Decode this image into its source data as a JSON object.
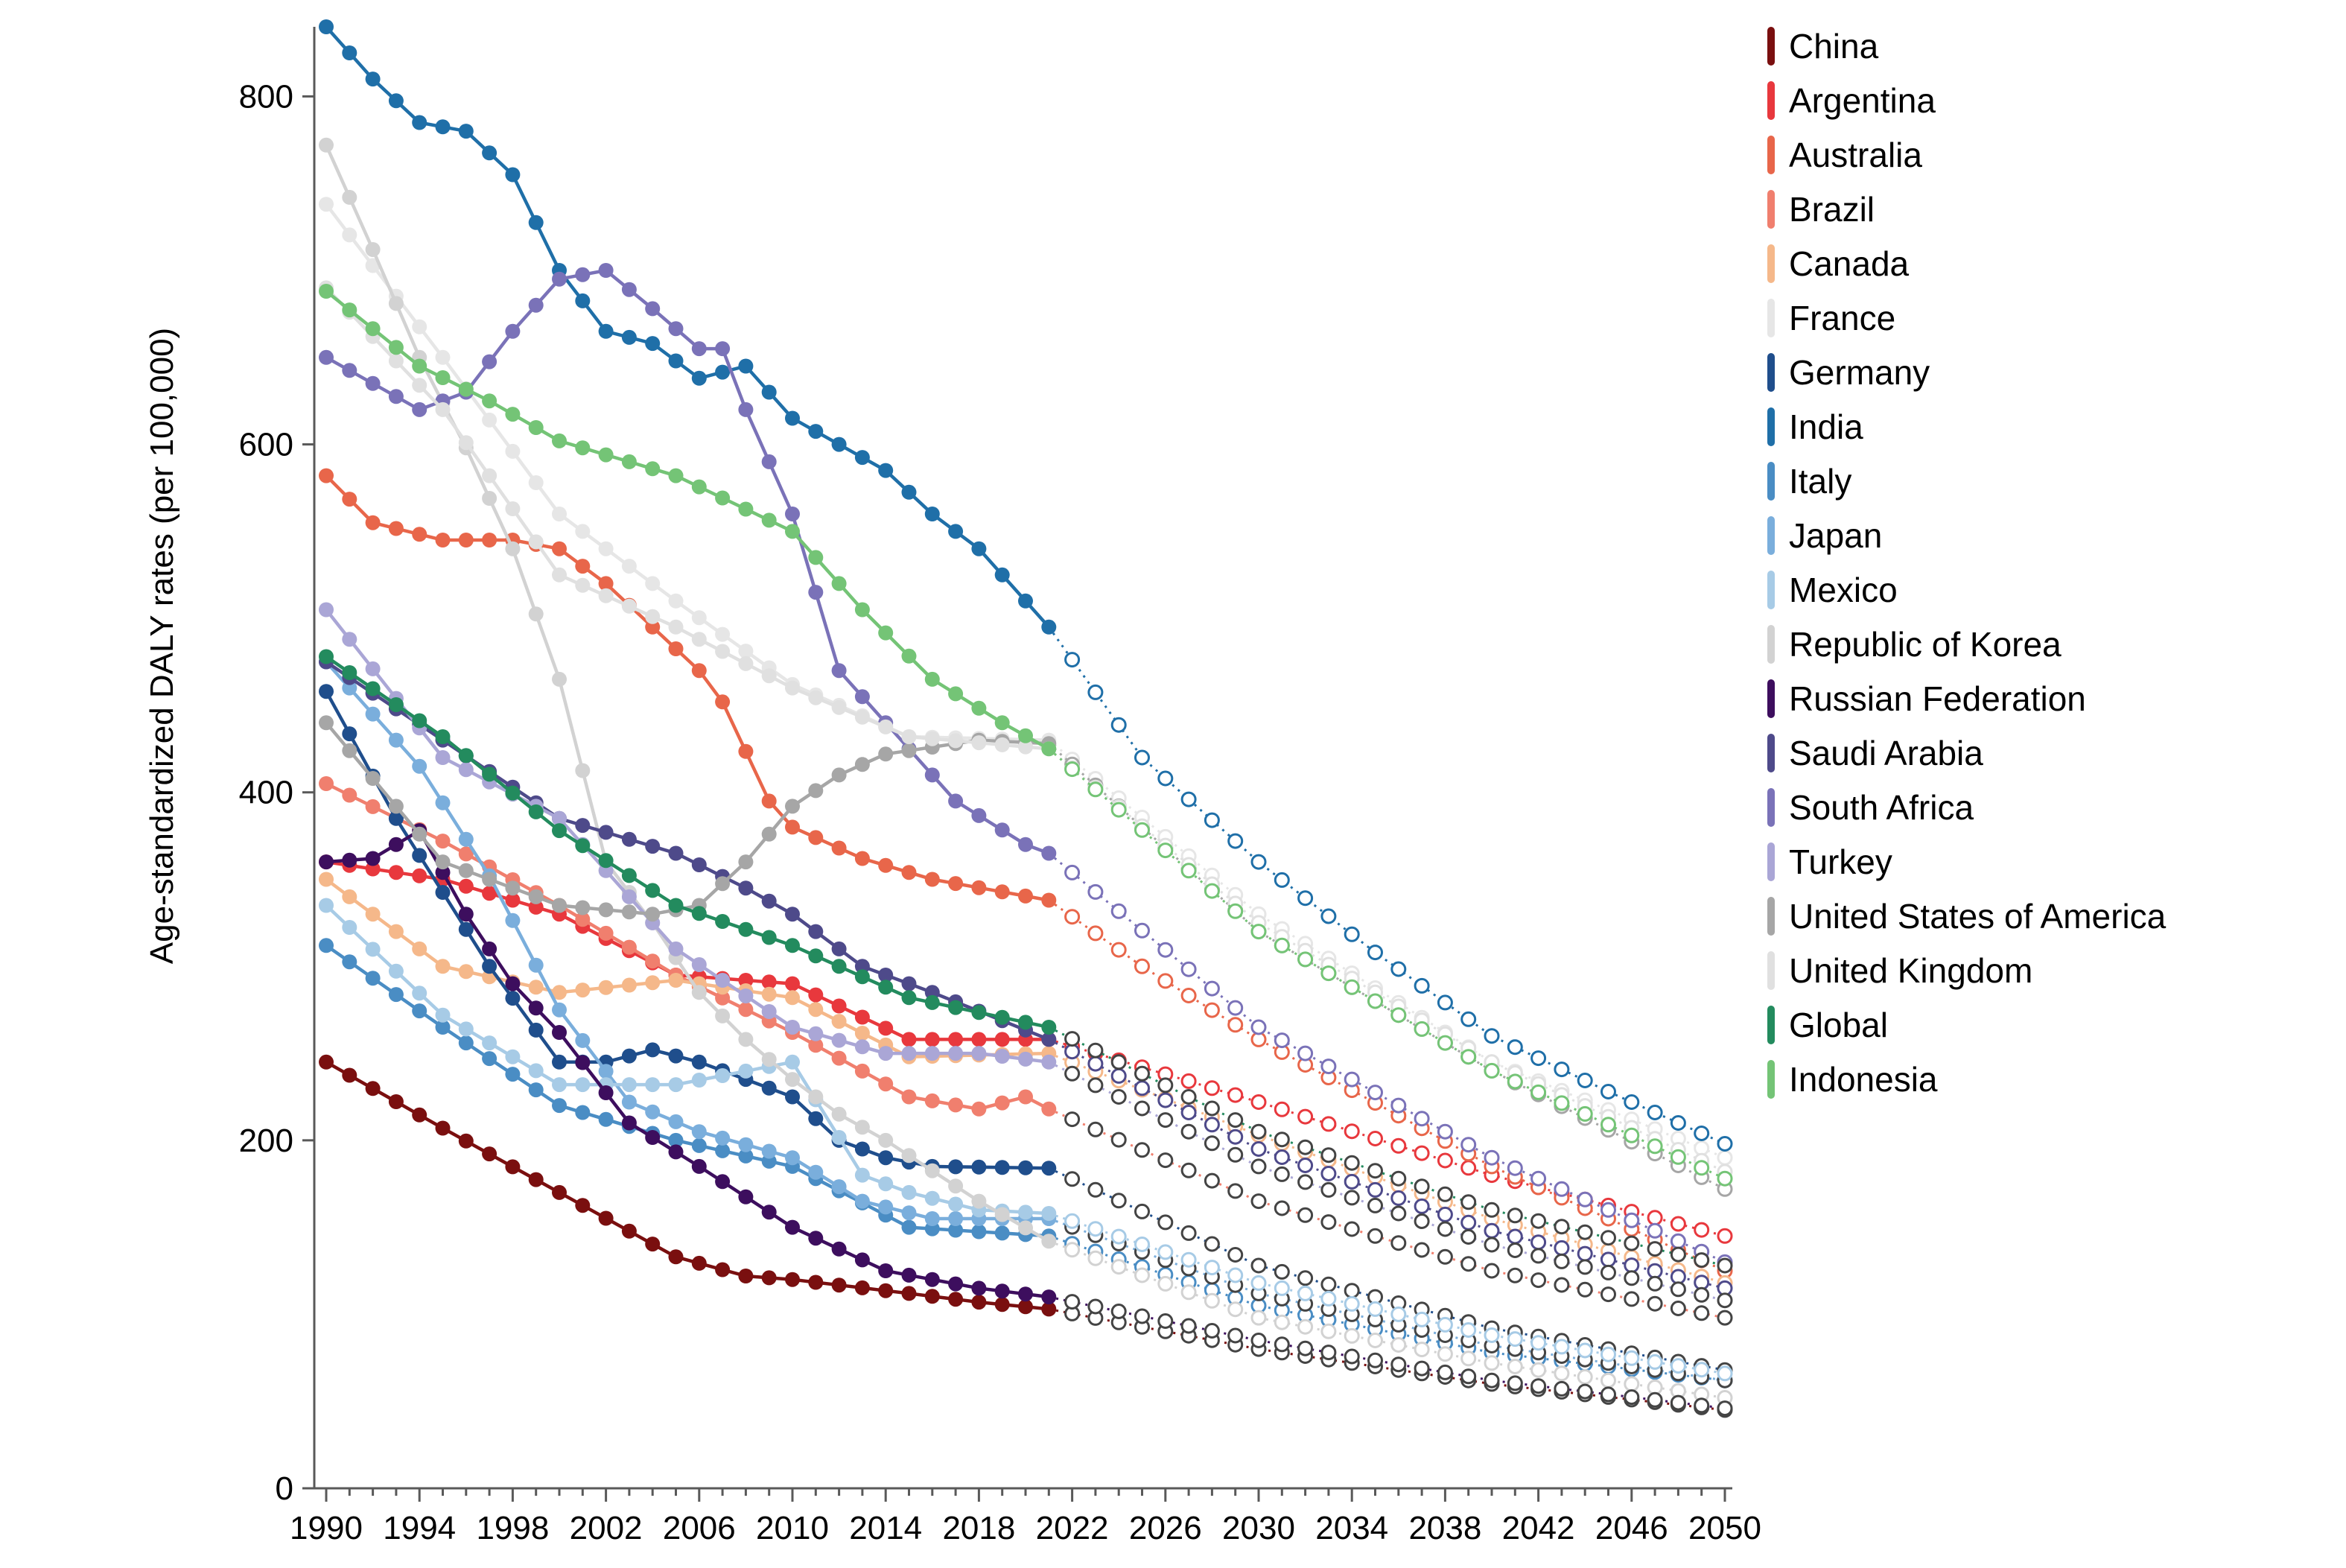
{
  "chart_data": {
    "type": "line",
    "title": "",
    "xlabel": "",
    "ylabel": "Age-standardized DALY rates (per 100,000)",
    "xlim": [
      1990,
      2050
    ],
    "ylim": [
      0,
      840
    ],
    "observed_end": 2021,
    "x_ticks": [
      1990,
      1994,
      1998,
      2002,
      2006,
      2010,
      2014,
      2018,
      2022,
      2026,
      2030,
      2034,
      2038,
      2042,
      2046,
      2050
    ],
    "y_ticks": [
      0,
      200,
      400,
      600,
      800
    ],
    "legend_position": "right",
    "series": [
      {
        "name": "China",
        "color": "#7a0f0f",
        "points": [
          [
            1990,
            245
          ],
          [
            1995,
            207
          ],
          [
            2000,
            170
          ],
          [
            2005,
            133
          ],
          [
            2008,
            122
          ],
          [
            2010,
            120
          ],
          [
            2015,
            112
          ],
          [
            2018,
            107
          ],
          [
            2021,
            103
          ],
          [
            2030,
            80
          ],
          [
            2040,
            60
          ],
          [
            2050,
            45
          ]
        ]
      },
      {
        "name": "Argentina",
        "color": "#e8383d",
        "points": [
          [
            1990,
            360
          ],
          [
            1995,
            350
          ],
          [
            2000,
            330
          ],
          [
            2005,
            295
          ],
          [
            2010,
            290
          ],
          [
            2015,
            258
          ],
          [
            2021,
            258
          ],
          [
            2030,
            222
          ],
          [
            2040,
            180
          ],
          [
            2050,
            145
          ]
        ]
      },
      {
        "name": "Australia",
        "color": "#e8664a",
        "points": [
          [
            1990,
            582
          ],
          [
            1992,
            555
          ],
          [
            1995,
            545
          ],
          [
            1998,
            545
          ],
          [
            2000,
            540
          ],
          [
            2002,
            520
          ],
          [
            2004,
            495
          ],
          [
            2006,
            470
          ],
          [
            2007,
            452
          ],
          [
            2009,
            395
          ],
          [
            2010,
            380
          ],
          [
            2013,
            362
          ],
          [
            2016,
            350
          ],
          [
            2021,
            338
          ],
          [
            2025,
            300
          ],
          [
            2030,
            258
          ],
          [
            2040,
            185
          ],
          [
            2050,
            125
          ]
        ]
      },
      {
        "name": "Brazil",
        "color": "#f07f6e",
        "points": [
          [
            1990,
            405
          ],
          [
            1995,
            372
          ],
          [
            2000,
            335
          ],
          [
            2005,
            295
          ],
          [
            2010,
            262
          ],
          [
            2015,
            225
          ],
          [
            2018,
            218
          ],
          [
            2020,
            225
          ],
          [
            2021,
            218
          ],
          [
            2030,
            165
          ],
          [
            2040,
            125
          ],
          [
            2050,
            98
          ]
        ]
      },
      {
        "name": "Canada",
        "color": "#f5b88a",
        "points": [
          [
            1990,
            350
          ],
          [
            1995,
            300
          ],
          [
            2000,
            285
          ],
          [
            2005,
            292
          ],
          [
            2010,
            282
          ],
          [
            2015,
            248
          ],
          [
            2021,
            250
          ],
          [
            2030,
            203
          ],
          [
            2040,
            155
          ],
          [
            2050,
            118
          ]
        ]
      },
      {
        "name": "France",
        "color": "#e6e6e6",
        "points": [
          [
            1990,
            738
          ],
          [
            1995,
            650
          ],
          [
            2000,
            560
          ],
          [
            2005,
            510
          ],
          [
            2010,
            462
          ],
          [
            2015,
            432
          ],
          [
            2021,
            430
          ],
          [
            2030,
            330
          ],
          [
            2040,
            245
          ],
          [
            2050,
            190
          ]
        ]
      },
      {
        "name": "Germany",
        "color": "#1f4e8c",
        "points": [
          [
            1990,
            458
          ],
          [
            1993,
            385
          ],
          [
            1997,
            300
          ],
          [
            2000,
            245
          ],
          [
            2002,
            245
          ],
          [
            2004,
            252
          ],
          [
            2006,
            245
          ],
          [
            2010,
            225
          ],
          [
            2012,
            200
          ],
          [
            2014,
            190
          ],
          [
            2016,
            185
          ],
          [
            2021,
            184
          ],
          [
            2030,
            128
          ],
          [
            2040,
            92
          ],
          [
            2050,
            68
          ]
        ]
      },
      {
        "name": "India",
        "color": "#1f6fa8",
        "points": [
          [
            1990,
            840
          ],
          [
            1992,
            810
          ],
          [
            1994,
            785
          ],
          [
            1996,
            780
          ],
          [
            1998,
            755
          ],
          [
            2000,
            700
          ],
          [
            2002,
            665
          ],
          [
            2004,
            658
          ],
          [
            2006,
            638
          ],
          [
            2008,
            645
          ],
          [
            2010,
            615
          ],
          [
            2012,
            600
          ],
          [
            2014,
            585
          ],
          [
            2016,
            560
          ],
          [
            2018,
            540
          ],
          [
            2020,
            510
          ],
          [
            2021,
            495
          ],
          [
            2025,
            420
          ],
          [
            2030,
            360
          ],
          [
            2035,
            308
          ],
          [
            2040,
            260
          ],
          [
            2045,
            228
          ],
          [
            2050,
            198
          ]
        ]
      },
      {
        "name": "Italy",
        "color": "#4a8dc4",
        "points": [
          [
            1990,
            312
          ],
          [
            1995,
            265
          ],
          [
            2000,
            220
          ],
          [
            2005,
            200
          ],
          [
            2010,
            185
          ],
          [
            2015,
            150
          ],
          [
            2021,
            145
          ],
          [
            2030,
            105
          ],
          [
            2040,
            78
          ],
          [
            2050,
            62
          ]
        ]
      },
      {
        "name": "Japan",
        "color": "#7aaedc",
        "points": [
          [
            1990,
            475
          ],
          [
            1994,
            415
          ],
          [
            1997,
            352
          ],
          [
            2000,
            275
          ],
          [
            2003,
            222
          ],
          [
            2006,
            205
          ],
          [
            2010,
            190
          ],
          [
            2013,
            165
          ],
          [
            2016,
            155
          ],
          [
            2021,
            155
          ],
          [
            2030,
            112
          ],
          [
            2040,
            82
          ],
          [
            2050,
            62
          ]
        ]
      },
      {
        "name": "Mexico",
        "color": "#a7cbe6",
        "points": [
          [
            1990,
            335
          ],
          [
            1995,
            272
          ],
          [
            2000,
            232
          ],
          [
            2005,
            232
          ],
          [
            2010,
            245
          ],
          [
            2013,
            180
          ],
          [
            2015,
            170
          ],
          [
            2018,
            160
          ],
          [
            2021,
            158
          ],
          [
            2030,
            118
          ],
          [
            2040,
            88
          ],
          [
            2050,
            66
          ]
        ]
      },
      {
        "name": "Republic of Korea",
        "color": "#d2d2d2",
        "points": [
          [
            1990,
            772
          ],
          [
            1992,
            712
          ],
          [
            1994,
            650
          ],
          [
            1996,
            598
          ],
          [
            1998,
            540
          ],
          [
            2000,
            465
          ],
          [
            2002,
            360
          ],
          [
            2004,
            325
          ],
          [
            2006,
            285
          ],
          [
            2008,
            258
          ],
          [
            2010,
            235
          ],
          [
            2012,
            215
          ],
          [
            2014,
            200
          ],
          [
            2018,
            165
          ],
          [
            2021,
            142
          ],
          [
            2030,
            98
          ],
          [
            2040,
            72
          ],
          [
            2050,
            52
          ]
        ]
      },
      {
        "name": "Russian Federation",
        "color": "#3d0e5e",
        "points": [
          [
            1990,
            360
          ],
          [
            1992,
            362
          ],
          [
            1994,
            378
          ],
          [
            1996,
            330
          ],
          [
            1998,
            290
          ],
          [
            2000,
            262
          ],
          [
            2003,
            210
          ],
          [
            2006,
            185
          ],
          [
            2010,
            150
          ],
          [
            2014,
            125
          ],
          [
            2018,
            115
          ],
          [
            2021,
            110
          ],
          [
            2030,
            85
          ],
          [
            2040,
            62
          ],
          [
            2050,
            46
          ]
        ]
      },
      {
        "name": "Saudi Arabia",
        "color": "#4e4a8a",
        "points": [
          [
            1990,
            475
          ],
          [
            1995,
            430
          ],
          [
            2000,
            385
          ],
          [
            2005,
            365
          ],
          [
            2008,
            345
          ],
          [
            2010,
            330
          ],
          [
            2013,
            300
          ],
          [
            2016,
            285
          ],
          [
            2021,
            258
          ],
          [
            2030,
            195
          ],
          [
            2040,
            148
          ],
          [
            2050,
            115
          ]
        ]
      },
      {
        "name": "South Africa",
        "color": "#7a72b8",
        "points": [
          [
            1990,
            650
          ],
          [
            1994,
            620
          ],
          [
            1996,
            630
          ],
          [
            1998,
            665
          ],
          [
            2000,
            695
          ],
          [
            2002,
            700
          ],
          [
            2004,
            678
          ],
          [
            2006,
            655
          ],
          [
            2007,
            655
          ],
          [
            2008,
            620
          ],
          [
            2010,
            560
          ],
          [
            2012,
            470
          ],
          [
            2014,
            440
          ],
          [
            2017,
            395
          ],
          [
            2020,
            370
          ],
          [
            2021,
            365
          ],
          [
            2030,
            265
          ],
          [
            2040,
            190
          ],
          [
            2050,
            130
          ]
        ]
      },
      {
        "name": "Turkey",
        "color": "#aaa6d6",
        "points": [
          [
            1990,
            505
          ],
          [
            1995,
            420
          ],
          [
            2000,
            385
          ],
          [
            2005,
            310
          ],
          [
            2010,
            265
          ],
          [
            2014,
            250
          ],
          [
            2018,
            250
          ],
          [
            2021,
            245
          ],
          [
            2030,
            185
          ],
          [
            2040,
            140
          ],
          [
            2050,
            108
          ]
        ]
      },
      {
        "name": "United States of America",
        "color": "#a6a6a6",
        "points": [
          [
            1990,
            440
          ],
          [
            1995,
            360
          ],
          [
            2000,
            335
          ],
          [
            2004,
            330
          ],
          [
            2006,
            335
          ],
          [
            2008,
            360
          ],
          [
            2010,
            392
          ],
          [
            2012,
            410
          ],
          [
            2014,
            422
          ],
          [
            2018,
            430
          ],
          [
            2021,
            428
          ],
          [
            2030,
            320
          ],
          [
            2040,
            240
          ],
          [
            2050,
            172
          ]
        ]
      },
      {
        "name": "United Kingdom",
        "color": "#e0e0e0",
        "points": [
          [
            1990,
            690
          ],
          [
            1995,
            620
          ],
          [
            2000,
            525
          ],
          [
            2005,
            495
          ],
          [
            2010,
            460
          ],
          [
            2015,
            432
          ],
          [
            2021,
            425
          ],
          [
            2030,
            325
          ],
          [
            2040,
            245
          ],
          [
            2050,
            182
          ]
        ]
      },
      {
        "name": "Global",
        "color": "#238b5e",
        "points": [
          [
            1990,
            478
          ],
          [
            1995,
            432
          ],
          [
            2000,
            378
          ],
          [
            2005,
            335
          ],
          [
            2010,
            312
          ],
          [
            2015,
            282
          ],
          [
            2021,
            265
          ],
          [
            2030,
            205
          ],
          [
            2040,
            160
          ],
          [
            2050,
            128
          ]
        ]
      },
      {
        "name": "Indonesia",
        "color": "#74c476",
        "points": [
          [
            1990,
            688
          ],
          [
            1994,
            645
          ],
          [
            1997,
            625
          ],
          [
            2000,
            602
          ],
          [
            2005,
            582
          ],
          [
            2010,
            550
          ],
          [
            2013,
            505
          ],
          [
            2016,
            465
          ],
          [
            2019,
            440
          ],
          [
            2021,
            425
          ],
          [
            2030,
            320
          ],
          [
            2040,
            240
          ],
          [
            2050,
            178
          ]
        ]
      }
    ]
  }
}
